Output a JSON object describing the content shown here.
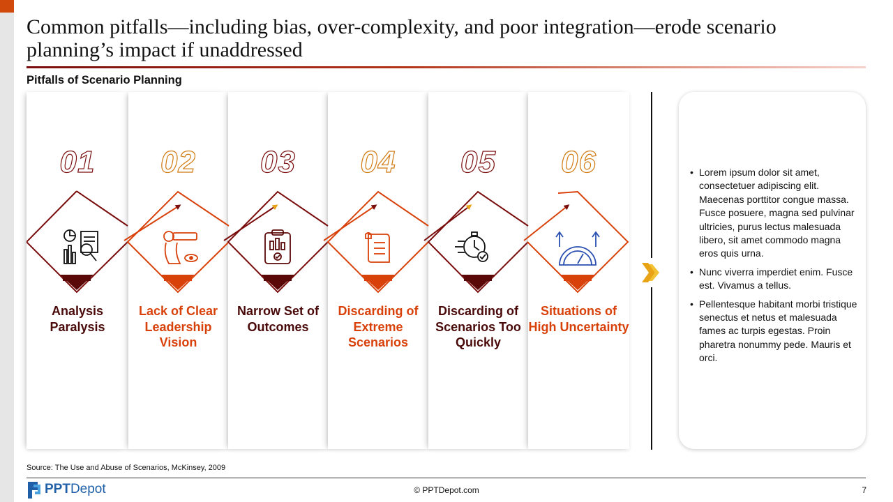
{
  "title": "Common pitfalls—including bias, over-complexity, and poor integration—erode scenario planning’s impact if unaddressed",
  "subtitle": "Pitfalls of Scenario Planning",
  "pitfalls": [
    {
      "number": "01",
      "label": "Analysis Paralysis",
      "icon": "analysis-report-icon",
      "tone": "dark"
    },
    {
      "number": "02",
      "label": "Lack of Clear Leadership Vision",
      "icon": "telescope-vision-icon",
      "tone": "orange"
    },
    {
      "number": "03",
      "label": "Narrow Set of Outcomes",
      "icon": "clipboard-checklist-icon",
      "tone": "dark"
    },
    {
      "number": "04",
      "label": "Discarding of Extreme Scenarios",
      "icon": "scroll-document-icon",
      "tone": "orange"
    },
    {
      "number": "05",
      "label": "Discarding of Scenarios Too Quickly",
      "icon": "stopwatch-check-icon",
      "tone": "dark"
    },
    {
      "number": "06",
      "label": "Situations of High Uncertainty",
      "icon": "speedometer-arrows-icon",
      "tone": "orange"
    }
  ],
  "side_panel": {
    "bullets": [
      "Lorem ipsum dolor sit amet, consectetuer adipiscing elit. Maecenas porttitor congue massa. Fusce posuere, magna sed pulvinar ultricies, purus lectus malesuada libero, sit amet commodo magna eros quis urna.",
      "Nunc viverra imperdiet enim. Fusce est. Vivamus a tellus.",
      "Pellentesque habitant morbi tristique senectus et netus et malesuada fames ac turpis egestas. Proin pharetra nonummy pede. Mauris et orci."
    ]
  },
  "source": "Source: The Use and Abuse of Scenarios, McKinsey, 2009",
  "footer": {
    "logo_bold": "PPT",
    "logo_rest": "Depot",
    "copyright": "© PPTDepot.com",
    "page_number": "7"
  },
  "colors": {
    "dark": "#7a0d0d",
    "orange": "#d8410a",
    "gold": "#e8a317",
    "icon_blue": "#2a4fb0"
  }
}
